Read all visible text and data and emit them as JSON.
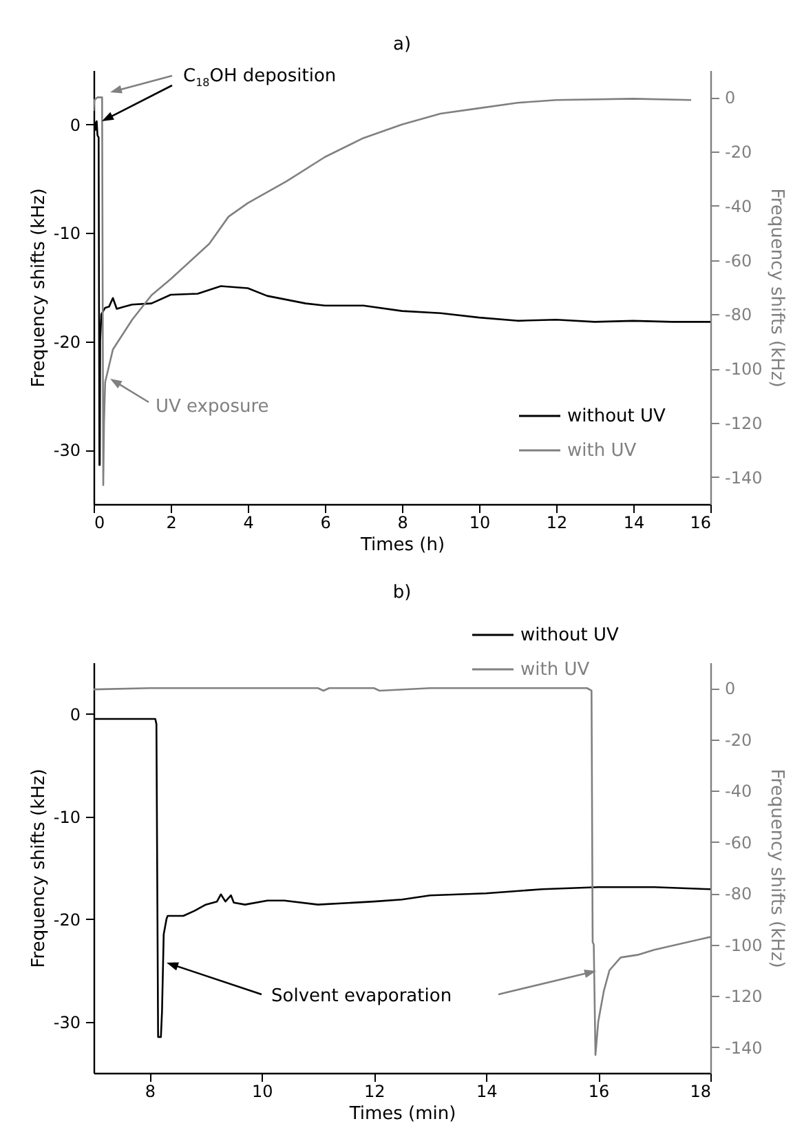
{
  "chart_data": [
    {
      "type": "line",
      "title": "a)",
      "xlabel": "Times (h)",
      "ylabel": "Frequency shifts (kHz)",
      "y2label": "Frequency shifts (kHz)",
      "xlim": [
        0,
        16
      ],
      "xticks": [
        0,
        2,
        4,
        6,
        8,
        10,
        12,
        14,
        16
      ],
      "ylim": [
        -35,
        5
      ],
      "yticks": [
        -30,
        -20,
        -10,
        0
      ],
      "y2lim": [
        -150,
        10
      ],
      "y2ticks": [
        -140,
        -120,
        -100,
        -80,
        -60,
        -40,
        -20,
        0
      ],
      "legend": "bottom right",
      "annotations": [
        "C$_{18}$OH deposition",
        "UV exposure"
      ],
      "series": [
        {
          "name": "without UV",
          "color": "#000000",
          "x": [
            0,
            0.03,
            0.05,
            0.08,
            0.1,
            0.13,
            0.15,
            0.16,
            0.17,
            0.2,
            0.3,
            0.4,
            0.5,
            0.6,
            0.8,
            1,
            1.5,
            2,
            2.7,
            3.3,
            4,
            4.5,
            5.5,
            6,
            7,
            8,
            9,
            10,
            11,
            12,
            13,
            14,
            15,
            16
          ],
          "values": [
            -1,
            0.2,
            -0.5,
            0.3,
            -1,
            -1.2,
            -31.4,
            -31.4,
            -20,
            -17.5,
            -16.9,
            -16.8,
            -16,
            -17,
            -16.8,
            -16.6,
            -16.5,
            -15.7,
            -15.6,
            -14.9,
            -15.1,
            -15.8,
            -16.5,
            -16.7,
            -16.7,
            -17.2,
            -17.4,
            -17.8,
            -18.1,
            -18,
            -18.2,
            -18.1,
            -18.2,
            -18.2
          ]
        },
        {
          "name": "with UV",
          "color": "#808080",
          "axis": "y2",
          "x": [
            0,
            0.02,
            0.1,
            0.22,
            0.25,
            0.27,
            0.3,
            0.5,
            1,
            1.5,
            2,
            3,
            3.5,
            4,
            5,
            6,
            7,
            8,
            9,
            10,
            11,
            12,
            14,
            15.5
          ],
          "values": [
            -5,
            -1,
            0,
            0,
            -143,
            -120,
            -105,
            -93,
            -82,
            -73,
            -67,
            -54,
            -44,
            -39,
            -31,
            -22,
            -15,
            -10,
            -6,
            -4,
            -2,
            -1,
            -0.5,
            -1
          ]
        }
      ]
    },
    {
      "type": "line",
      "title": "b)",
      "xlabel": "Times (min)",
      "ylabel": "Frequency shifts (kHz)",
      "y2label": "Frequency shifts (kHz)",
      "xlim": [
        7,
        18
      ],
      "xticks": [
        8,
        10,
        12,
        14,
        16,
        18
      ],
      "ylim": [
        -35,
        5
      ],
      "yticks": [
        -30,
        -20,
        -10,
        0
      ],
      "y2lim": [
        -150,
        10
      ],
      "y2ticks": [
        -140,
        -120,
        -100,
        -80,
        -60,
        -40,
        -20,
        0
      ],
      "legend": "top right",
      "annotations": [
        "Solvent evaporation"
      ],
      "series": [
        {
          "name": "without UV",
          "color": "#000000",
          "x": [
            7,
            8.1,
            8.12,
            8.15,
            8.2,
            8.22,
            8.25,
            8.3,
            8.32,
            8.6,
            8.8,
            9,
            9.2,
            9.27,
            9.35,
            9.45,
            9.5,
            9.7,
            10.1,
            10.4,
            11,
            12,
            12.5,
            13,
            14,
            15,
            16,
            17,
            18
          ],
          "values": [
            -0.5,
            -0.5,
            -1,
            -31.5,
            -31.5,
            -29,
            -21.5,
            -20,
            -19.7,
            -19.7,
            -19.2,
            -18.6,
            -18.3,
            -17.6,
            -18.3,
            -17.7,
            -18.4,
            -18.6,
            -18.2,
            -18.2,
            -18.6,
            -18.3,
            -18.1,
            -17.7,
            -17.5,
            -17.1,
            -16.9,
            -16.9,
            -17.1
          ]
        },
        {
          "name": "with UV",
          "color": "#808080",
          "axis": "y2",
          "x": [
            7,
            8,
            9,
            10,
            11,
            11.1,
            11.2,
            12,
            12.1,
            13,
            14,
            15,
            15.8,
            15.88,
            15.9,
            15.92,
            15.95,
            16,
            16.1,
            16.2,
            16.4,
            16.7,
            17,
            18
          ],
          "values": [
            -0.5,
            0,
            0,
            0,
            0,
            -1,
            0,
            0,
            -1,
            0,
            0,
            0,
            0,
            -1,
            -99,
            -100,
            -143,
            -130,
            -118,
            -110,
            -105,
            -104,
            -102,
            -97
          ]
        }
      ]
    }
  ]
}
